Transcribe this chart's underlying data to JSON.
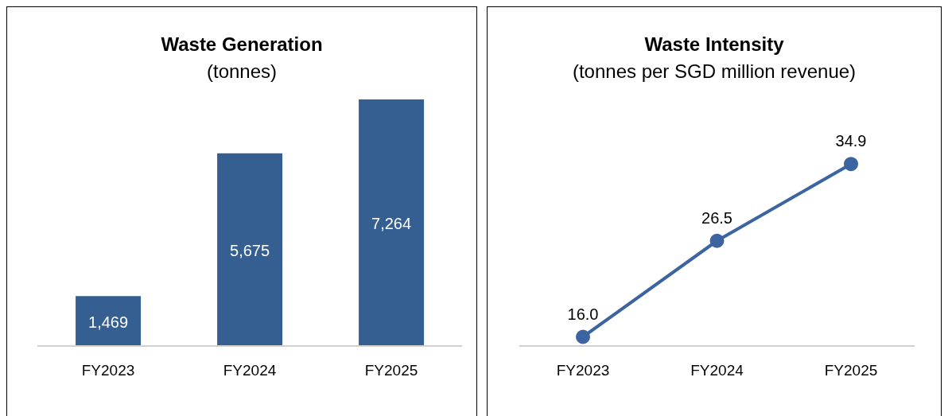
{
  "chart_data": [
    {
      "type": "bar",
      "title": "Waste Generation",
      "subtitle": "(tonnes)",
      "categories": [
        "FY2023",
        "FY2024",
        "FY2025"
      ],
      "values": [
        1469,
        5675,
        7264
      ],
      "value_labels": [
        "1,469",
        "5,675",
        "7,264"
      ],
      "color": "#365f91"
    },
    {
      "type": "line",
      "title": "Waste Intensity",
      "subtitle": "(tonnes per SGD million revenue)",
      "categories": [
        "FY2023",
        "FY2024",
        "FY2025"
      ],
      "values": [
        16.0,
        26.5,
        34.9
      ],
      "value_labels": [
        "16.0",
        "26.5",
        "34.9"
      ],
      "color": "#3b64a0",
      "marker": "circle"
    }
  ]
}
